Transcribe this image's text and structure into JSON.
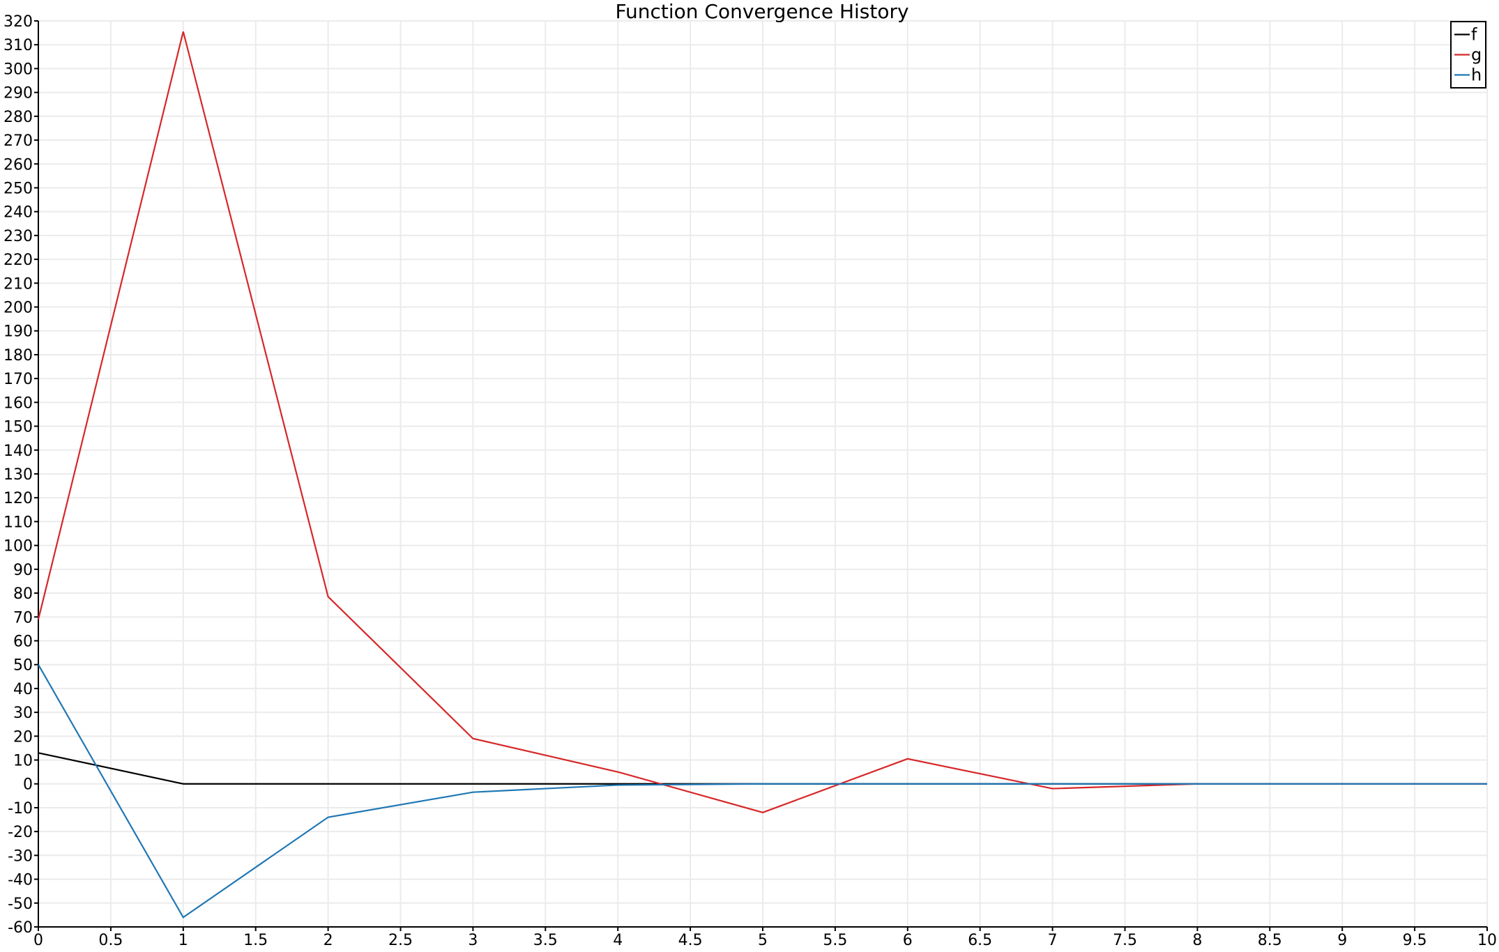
{
  "chart_data": {
    "type": "line",
    "title": "Function Convergence History",
    "xlabel": "",
    "ylabel": "",
    "xlim": [
      0,
      10
    ],
    "ylim": [
      -60,
      320
    ],
    "x_ticks": [
      0,
      0.5,
      1,
      1.5,
      2,
      2.5,
      3,
      3.5,
      4,
      4.5,
      5,
      5.5,
      6,
      6.5,
      7,
      7.5,
      8,
      8.5,
      9,
      9.5,
      10
    ],
    "y_ticks": [
      -60,
      -50,
      -40,
      -30,
      -20,
      -10,
      0,
      10,
      20,
      30,
      40,
      50,
      60,
      70,
      80,
      90,
      100,
      110,
      120,
      130,
      140,
      150,
      160,
      170,
      180,
      190,
      200,
      210,
      220,
      230,
      240,
      250,
      260,
      270,
      280,
      290,
      300,
      310,
      320
    ],
    "grid": true,
    "legend_position": "top-right",
    "x": [
      0,
      1,
      2,
      3,
      4,
      5,
      6,
      7,
      8,
      9,
      10
    ],
    "series": [
      {
        "name": "f",
        "color": "#000000",
        "values": [
          13,
          0,
          0,
          0,
          0,
          0,
          0,
          0,
          0,
          0,
          0
        ]
      },
      {
        "name": "g",
        "color": "#d62728",
        "values": [
          69,
          315.5,
          78.5,
          19,
          5,
          -12,
          10.5,
          -2,
          0,
          0,
          0
        ]
      },
      {
        "name": "h",
        "color": "#1f77b4",
        "values": [
          50,
          -56,
          -14,
          -3.5,
          -0.5,
          0,
          0,
          0,
          0,
          0,
          0
        ]
      }
    ]
  }
}
